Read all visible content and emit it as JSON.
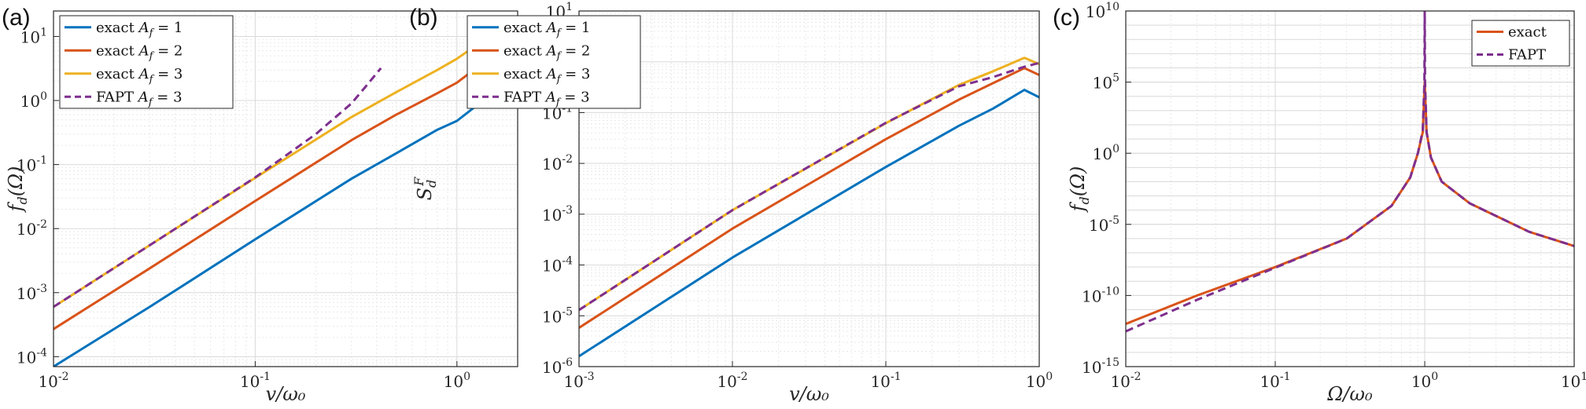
{
  "colors": {
    "blue": "#0072BD",
    "orange": "#D95319",
    "yellow": "#EDB120",
    "purple": "#7E2F8E",
    "grid_major": "#d9d9d9",
    "grid_minor": "#e8e8e8",
    "axis": "#262626"
  },
  "chart_data": [
    {
      "panel_label": "(a)",
      "type": "line",
      "xscale": "log",
      "yscale": "log",
      "xlim": [
        0.01,
        2
      ],
      "ylim": [
        7e-05,
        25
      ],
      "xlabel": "v/ω₀",
      "ylabel": "f_d(Ω)",
      "xticks": [
        0.01,
        0.1,
        1
      ],
      "xtick_labels": [
        "10^-2",
        "10^-1",
        "10^0"
      ],
      "yticks": [
        0.0001,
        0.001,
        0.01,
        0.1,
        1,
        10
      ],
      "ytick_labels": [
        "10^-4",
        "10^-3",
        "10^-2",
        "10^-1",
        "10^0",
        "10^1"
      ],
      "grid": true,
      "legend_position": "top-left",
      "legend": [
        "exact A_f = 1",
        "exact A_f = 2",
        "exact A_f = 3",
        "FAPT A_f = 3"
      ],
      "series": [
        {
          "name": "exact A_f = 1",
          "color": "blue",
          "dash": false,
          "x": [
            0.01,
            0.03,
            0.1,
            0.3,
            0.5,
            0.8,
            1.0,
            1.5,
            2.0
          ],
          "y": [
            7e-05,
            0.0006,
            0.0068,
            0.06,
            0.15,
            0.35,
            0.48,
            1.3,
            3.5
          ]
        },
        {
          "name": "exact A_f = 2",
          "color": "orange",
          "dash": false,
          "x": [
            0.01,
            0.03,
            0.1,
            0.3,
            0.5,
            0.8,
            1.0,
            1.5,
            2.0
          ],
          "y": [
            0.00027,
            0.0024,
            0.027,
            0.24,
            0.6,
            1.3,
            1.9,
            5.0,
            13
          ]
        },
        {
          "name": "exact A_f = 3",
          "color": "yellow",
          "dash": false,
          "x": [
            0.01,
            0.03,
            0.1,
            0.3,
            0.5,
            0.8,
            1.0,
            1.5,
            1.82
          ],
          "y": [
            0.0006,
            0.0055,
            0.062,
            0.55,
            1.35,
            3.0,
            4.5,
            11,
            20
          ]
        },
        {
          "name": "FAPT A_f = 3",
          "color": "purple",
          "dash": true,
          "x": [
            0.01,
            0.03,
            0.1,
            0.2,
            0.3,
            0.35,
            0.42
          ],
          "y": [
            0.0006,
            0.0055,
            0.063,
            0.3,
            0.9,
            1.6,
            3.2
          ]
        }
      ]
    },
    {
      "panel_label": "(b)",
      "type": "line",
      "xscale": "log",
      "yscale": "log",
      "xlim": [
        0.001,
        1
      ],
      "ylim": [
        1e-06,
        10
      ],
      "xlabel": "v/ω₀",
      "ylabel": "S_d^F",
      "xticks": [
        0.001,
        0.01,
        0.1,
        1
      ],
      "xtick_labels": [
        "10^-3",
        "10^-2",
        "10^-1",
        "10^0"
      ],
      "yticks": [
        1e-06,
        1e-05,
        0.0001,
        0.001,
        0.01,
        0.1,
        1,
        10
      ],
      "ytick_labels": [
        "10^-6",
        "10^-5",
        "10^-4",
        "10^-3",
        "10^-2",
        "10^-1",
        "10^0",
        "10^1"
      ],
      "grid": true,
      "legend_position": "top-left",
      "legend": [
        "exact A_f = 1",
        "exact A_f = 2",
        "exact A_f = 3",
        "FAPT A_f = 3"
      ],
      "series": [
        {
          "name": "exact A_f = 1",
          "color": "blue",
          "dash": false,
          "x": [
            0.001,
            0.01,
            0.1,
            0.3,
            0.5,
            0.8,
            1.0
          ],
          "y": [
            1.6e-06,
            0.00014,
            0.0085,
            0.055,
            0.12,
            0.28,
            0.2
          ]
        },
        {
          "name": "exact A_f = 2",
          "color": "orange",
          "dash": false,
          "x": [
            0.001,
            0.01,
            0.1,
            0.3,
            0.5,
            0.8,
            1.0
          ],
          "y": [
            5.8e-06,
            0.00052,
            0.03,
            0.18,
            0.38,
            0.75,
            0.55
          ]
        },
        {
          "name": "exact A_f = 3",
          "color": "yellow",
          "dash": false,
          "x": [
            0.001,
            0.01,
            0.1,
            0.3,
            0.5,
            0.8,
            1.0
          ],
          "y": [
            1.3e-05,
            0.0012,
            0.062,
            0.35,
            0.65,
            1.2,
            0.9
          ]
        },
        {
          "name": "FAPT A_f = 3",
          "color": "purple",
          "dash": true,
          "x": [
            0.001,
            0.01,
            0.1,
            0.3,
            0.5,
            0.8,
            1.0
          ],
          "y": [
            1.3e-05,
            0.0012,
            0.063,
            0.33,
            0.5,
            0.8,
            0.95
          ]
        }
      ]
    },
    {
      "panel_label": "(c)",
      "type": "line",
      "xscale": "log",
      "yscale": "log",
      "xlim": [
        0.01,
        10
      ],
      "ylim": [
        1e-15,
        10000000000.0
      ],
      "xlabel": "Ω/ω₀",
      "ylabel": "f_d(Ω)",
      "xticks": [
        0.01,
        0.1,
        1,
        10
      ],
      "xtick_labels": [
        "10^-2",
        "10^-1",
        "10^0",
        "10^1"
      ],
      "yticks": [
        1e-15,
        1e-10,
        1e-05,
        1,
        100000.0,
        10000000000.0
      ],
      "ytick_labels": [
        "10^-15",
        "10^-10",
        "10^-5",
        "10^0",
        "10^5",
        "10^10"
      ],
      "grid": true,
      "legend_position": "top-right",
      "legend": [
        "exact",
        "FAPT"
      ],
      "series": [
        {
          "name": "exact",
          "color": "orange",
          "dash": false,
          "x": [
            0.01,
            0.03,
            0.1,
            0.3,
            0.6,
            0.8,
            0.9,
            0.97,
            1.0,
            1.03,
            1.1,
            1.3,
            2,
            5,
            10
          ],
          "y": [
            1e-12,
            1e-10,
            1e-08,
            1e-06,
            0.0002,
            0.02,
            1,
            30,
            100000.0,
            30,
            0.5,
            0.01,
            0.0003,
            3e-06,
            3e-07
          ]
        },
        {
          "name": "FAPT",
          "color": "purple",
          "dash": true,
          "x": [
            0.01,
            0.03,
            0.1,
            0.3,
            0.6,
            0.8,
            0.9,
            0.97,
            0.995,
            1.0,
            1.005,
            1.03,
            1.1,
            1.3,
            2,
            5,
            10
          ],
          "y": [
            3e-13,
            5e-11,
            9e-09,
            1e-06,
            0.0002,
            0.02,
            1,
            40,
            100000.0,
            10000000000.0,
            100000.0,
            30,
            0.5,
            0.01,
            0.0003,
            3e-06,
            3e-07
          ]
        }
      ]
    }
  ]
}
